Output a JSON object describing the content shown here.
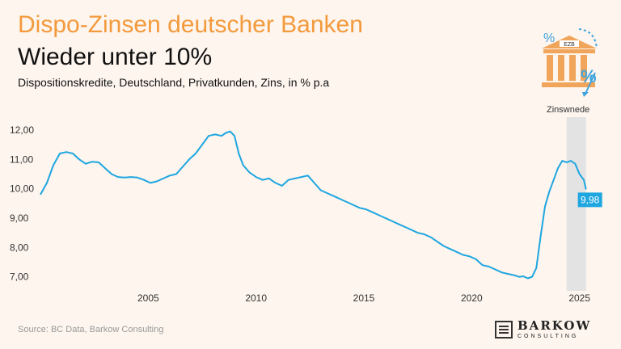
{
  "header": {
    "title": "Dispo-Zinsen deutscher Banken",
    "subtitle": "Wieder unter 10%",
    "description": "Dispositionskredite, Deutschland, Privatkunden, Zins, in % p.a"
  },
  "annotation": {
    "zinswende": "Zinswnede"
  },
  "icon": {
    "bank_label": "EZB"
  },
  "footer": {
    "source": "Source: BC Data, Barkow Consulting",
    "logo_name": "BARKOW",
    "logo_sub": "CONSULTING"
  },
  "colors": {
    "line": "#1ea6e0",
    "title": "#f39a3d",
    "shade": "#e3e3e3",
    "background": "#fdf5ee"
  },
  "chart_data": {
    "type": "line",
    "title": "Dispo-Zinsen deutscher Banken",
    "subtitle": "Wieder unter 10%",
    "xlabel": "",
    "ylabel": "",
    "xlim": [
      2000.0,
      2025.8
    ],
    "ylim": [
      6.8,
      12.3
    ],
    "y_ticks": [
      "7,00",
      "8,00",
      "9,00",
      "10,00",
      "11,00",
      "12,00"
    ],
    "y_tick_values": [
      7,
      8,
      9,
      10,
      11,
      12
    ],
    "x_ticks": [
      "2005",
      "2010",
      "2015",
      "2020",
      "2025"
    ],
    "x_tick_values": [
      2005,
      2010,
      2015,
      2020,
      2025
    ],
    "grid": false,
    "shaded_region": {
      "x": [
        2024.4,
        2025.3
      ],
      "label": "Zinswnede"
    },
    "end_label": "9,98",
    "series": [
      {
        "x": [
          2000.0,
          2000.3,
          2000.6,
          2000.9,
          2001.2,
          2001.5,
          2001.8,
          2002.1,
          2002.4,
          2002.7,
          2003.0,
          2003.3,
          2003.6,
          2003.9,
          2004.2,
          2004.5,
          2004.8,
          2005.1,
          2005.4,
          2005.7,
          2006.0,
          2006.3,
          2006.6,
          2006.9,
          2007.2,
          2007.5,
          2007.8,
          2008.1,
          2008.4,
          2008.6,
          2008.8,
          2009.0,
          2009.2,
          2009.4,
          2009.7,
          2010.0,
          2010.3,
          2010.6,
          2010.9,
          2011.2,
          2011.5,
          2011.8,
          2012.1,
          2012.4,
          2012.7,
          2013.0,
          2013.3,
          2013.6,
          2013.9,
          2014.2,
          2014.5,
          2014.8,
          2015.1,
          2015.4,
          2015.7,
          2016.0,
          2016.3,
          2016.6,
          2016.9,
          2017.2,
          2017.5,
          2017.8,
          2018.1,
          2018.4,
          2018.7,
          2019.0,
          2019.3,
          2019.6,
          2019.9,
          2020.2,
          2020.5,
          2020.8,
          2021.1,
          2021.4,
          2021.7,
          2022.0,
          2022.2,
          2022.4,
          2022.6,
          2022.8,
          2023.0,
          2023.2,
          2023.4,
          2023.6,
          2023.8,
          2024.0,
          2024.2,
          2024.4,
          2024.6,
          2024.8,
          2025.0,
          2025.2,
          2025.3
        ],
        "values": [
          9.8,
          10.2,
          10.8,
          11.2,
          11.25,
          11.2,
          11.0,
          10.85,
          10.92,
          10.9,
          10.7,
          10.5,
          10.4,
          10.38,
          10.4,
          10.38,
          10.3,
          10.2,
          10.25,
          10.35,
          10.45,
          10.5,
          10.75,
          11.0,
          11.2,
          11.5,
          11.8,
          11.85,
          11.8,
          11.9,
          11.95,
          11.8,
          11.2,
          10.8,
          10.55,
          10.4,
          10.3,
          10.35,
          10.2,
          10.1,
          10.3,
          10.35,
          10.4,
          10.45,
          10.2,
          9.95,
          9.85,
          9.75,
          9.65,
          9.55,
          9.45,
          9.35,
          9.3,
          9.2,
          9.1,
          9.0,
          8.9,
          8.8,
          8.7,
          8.6,
          8.5,
          8.45,
          8.35,
          8.2,
          8.05,
          7.95,
          7.85,
          7.75,
          7.7,
          7.6,
          7.4,
          7.35,
          7.25,
          7.15,
          7.1,
          7.05,
          7.0,
          7.02,
          6.95,
          7.0,
          7.3,
          8.4,
          9.4,
          9.9,
          10.3,
          10.7,
          10.95,
          10.9,
          10.95,
          10.85,
          10.5,
          10.3,
          9.98
        ]
      }
    ]
  }
}
